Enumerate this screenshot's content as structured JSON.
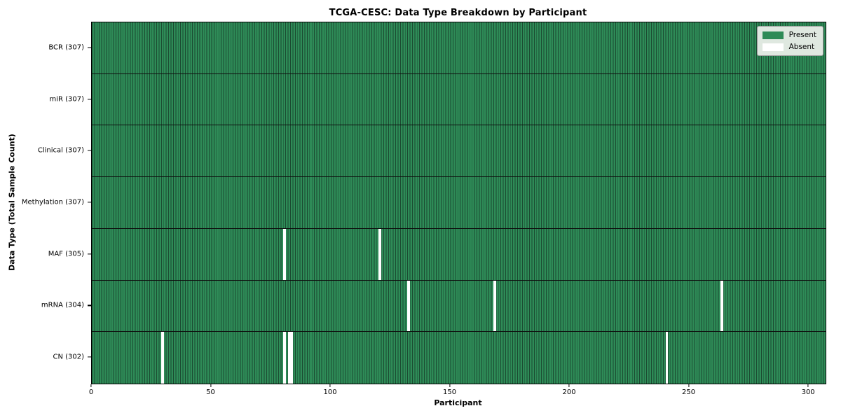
{
  "chart_data": {
    "type": "heatmap",
    "title": "TCGA-CESC: Data Type Breakdown by Participant",
    "xlabel": "Participant",
    "ylabel": "Data Type (Total Sample Count)",
    "x_ticks": [
      0,
      50,
      100,
      150,
      200,
      250,
      300
    ],
    "x_range": [
      0,
      307
    ],
    "n_participants": 307,
    "grid": false,
    "legend_position": "upper right",
    "legend": [
      {
        "label": "Present",
        "color": "#2e8b57"
      },
      {
        "label": "Absent",
        "color": "#ffffff"
      }
    ],
    "rows": [
      {
        "label": "BCR (307)",
        "data_type": "BCR",
        "present_count": 307,
        "absent_participants": []
      },
      {
        "label": "miR (307)",
        "data_type": "miR",
        "present_count": 307,
        "absent_participants": []
      },
      {
        "label": "Clinical (307)",
        "data_type": "Clinical",
        "present_count": 307,
        "absent_participants": []
      },
      {
        "label": "Methylation (307)",
        "data_type": "Methylation",
        "present_count": 307,
        "absent_participants": []
      },
      {
        "label": "MAF (305)",
        "data_type": "MAF",
        "present_count": 305,
        "absent_participants": [
          80,
          120
        ]
      },
      {
        "label": "mRNA (304)",
        "data_type": "mRNA",
        "present_count": 304,
        "absent_participants": [
          132,
          168,
          263
        ]
      },
      {
        "label": "CN (302)",
        "data_type": "CN",
        "present_count": 302,
        "absent_participants": [
          29,
          80,
          82,
          83,
          240
        ]
      }
    ],
    "colors": {
      "present": "#2e8b57",
      "absent": "#ffffff",
      "cell_edge": "#1b4a31",
      "row_divider": "#0e0e0e",
      "axes_border": "#000000",
      "legend_face": "#dfe8e0",
      "legend_edge": "#9b9b9b"
    }
  }
}
